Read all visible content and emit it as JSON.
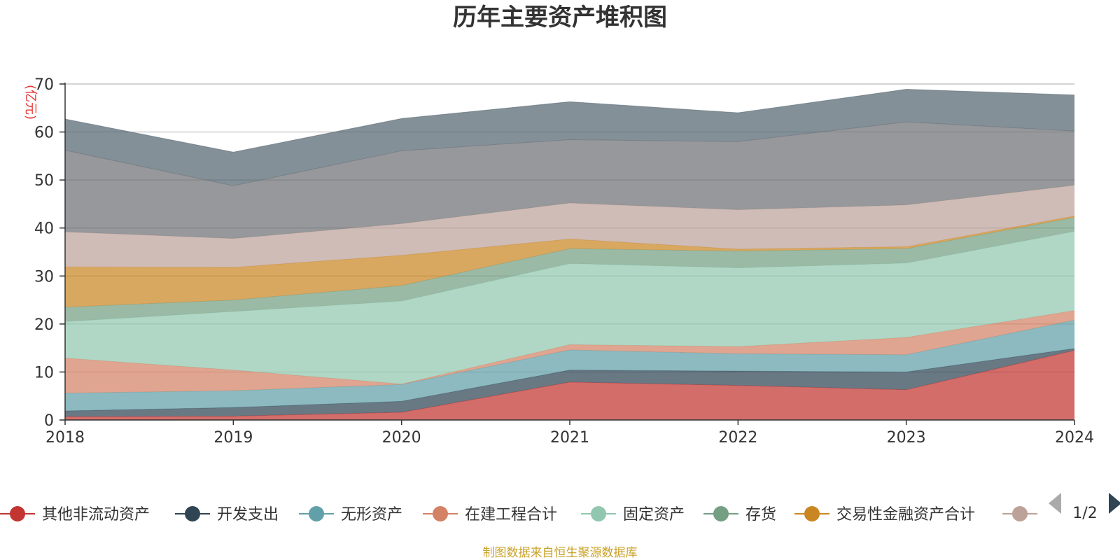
{
  "title": "历年主要资产堆积图",
  "unit_label": "(亿元)",
  "source_note": "制图数据来自恒生聚源数据库",
  "legend_page": "1/2",
  "colors": {
    "axis": "#333333",
    "grid": "#bbbbbb",
    "pager_active": "#2f4554",
    "pager_inactive": "#aaaaaa"
  },
  "chart_data": {
    "type": "area",
    "stacked": true,
    "title": "历年主要资产堆积图",
    "ylabel": "(亿元)",
    "xlabel": "",
    "ylim": [
      0,
      70
    ],
    "yticks": [
      0,
      10,
      20,
      30,
      40,
      50,
      60,
      70
    ],
    "grid": true,
    "legend_position": "bottom",
    "x": [
      "2018",
      "2019",
      "2020",
      "2021",
      "2022",
      "2023",
      "2024"
    ],
    "series": [
      {
        "name": "其他非流动资产",
        "color": "#c23531",
        "values": [
          0.7,
          0.8,
          1.6,
          7.9,
          7.2,
          6.3,
          14.5
        ]
      },
      {
        "name": "开发支出",
        "color": "#2f4554",
        "values": [
          1.2,
          1.8,
          2.3,
          2.5,
          3.0,
          3.7,
          0.4
        ]
      },
      {
        "name": "无形资产",
        "color": "#61a0a8",
        "values": [
          3.7,
          3.5,
          3.5,
          4.2,
          3.6,
          3.6,
          5.9
        ]
      },
      {
        "name": "在建工程合计",
        "color": "#d48265",
        "values": [
          7.3,
          4.3,
          0.1,
          1.1,
          1.5,
          3.6,
          2.0
        ]
      },
      {
        "name": "固定资产",
        "color": "#91c7ae",
        "values": [
          7.6,
          12.2,
          17.3,
          16.9,
          16.4,
          15.5,
          16.5
        ]
      },
      {
        "name": "存货",
        "color": "#749f83",
        "values": [
          3.0,
          2.4,
          3.2,
          3.1,
          3.5,
          3.0,
          2.9
        ]
      },
      {
        "name": "交易性金融资产合计",
        "color": "#ca8622",
        "values": [
          8.4,
          6.8,
          6.3,
          2.0,
          0.4,
          0.4,
          0.3
        ]
      },
      {
        "name": "",
        "color": "#bda29a",
        "values": [
          7.3,
          6.0,
          6.6,
          7.5,
          8.2,
          8.7,
          6.4
        ]
      },
      {
        "name": "",
        "color": "#6e7074",
        "values": [
          17.0,
          11.0,
          15.2,
          13.2,
          14.2,
          17.3,
          11.3
        ]
      },
      {
        "name": "",
        "color": "#546570",
        "values": [
          6.5,
          7.0,
          6.7,
          7.9,
          6.0,
          6.8,
          7.5
        ]
      }
    ]
  }
}
